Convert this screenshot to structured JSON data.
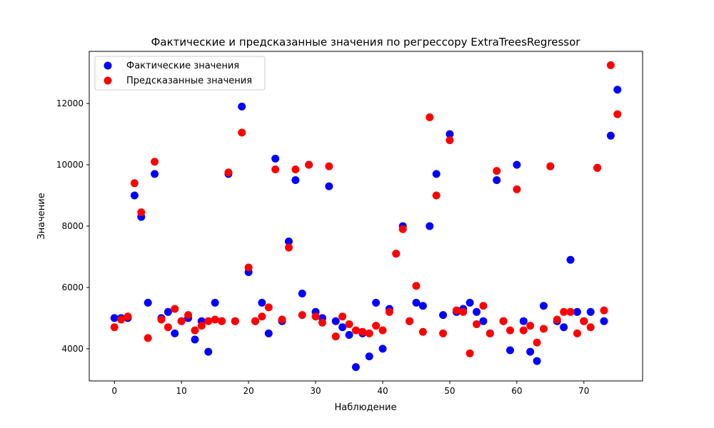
{
  "chart_data": {
    "type": "scatter",
    "title": "Фактические и предсказанные значения по регрессору ExtraTreesRegressor",
    "xlabel": "Наблюдение",
    "ylabel": "Значение",
    "xlim": [
      -3.75,
      78.75
    ],
    "ylim": [
      2950,
      13700
    ],
    "xticks": [
      0,
      10,
      20,
      30,
      40,
      50,
      60,
      70
    ],
    "yticks": [
      4000,
      6000,
      8000,
      10000,
      12000
    ],
    "grid": false,
    "legend": {
      "position": "top-left",
      "entries": [
        "Фактические значения",
        "Предсказанные значения"
      ]
    },
    "series": [
      {
        "name": "Фактические значения",
        "color": "#0000ff",
        "x": [
          0,
          1,
          2,
          3,
          4,
          5,
          6,
          7,
          8,
          9,
          10,
          11,
          12,
          13,
          14,
          15,
          16,
          17,
          18,
          19,
          20,
          21,
          22,
          23,
          24,
          25,
          26,
          27,
          28,
          29,
          30,
          31,
          32,
          33,
          34,
          35,
          36,
          37,
          38,
          39,
          40,
          41,
          42,
          43,
          44,
          45,
          46,
          47,
          48,
          49,
          50,
          51,
          52,
          53,
          54,
          55,
          56,
          57,
          58,
          59,
          60,
          61,
          62,
          63,
          64,
          65,
          66,
          67,
          68,
          69,
          70,
          71,
          72,
          73,
          74,
          75
        ],
        "y": [
          5000,
          5000,
          5000,
          9000,
          8300,
          5500,
          9700,
          5000,
          5200,
          4500,
          4900,
          5000,
          4300,
          4900,
          3900,
          5500,
          4900,
          9700,
          4900,
          11900,
          6500,
          4900,
          5500,
          4500,
          10200,
          4900,
          7500,
          9500,
          5800,
          10000,
          5200,
          5000,
          9300,
          4900,
          4700,
          4450,
          3400,
          4500,
          3750,
          5500,
          4000,
          5300,
          7100,
          8000,
          4900,
          5500,
          5400,
          8000,
          9700,
          5100,
          11000,
          5200,
          5300,
          5500,
          5200,
          4900,
          4500,
          9500,
          4900,
          3950,
          10000,
          4900,
          3900,
          3600,
          5400,
          9950,
          4900,
          4700,
          6900,
          5200,
          4900,
          5200,
          9900,
          4900,
          10950,
          12450
        ]
      },
      {
        "name": "Предсказанные значения",
        "color": "#ff0000",
        "x": [
          0,
          1,
          2,
          3,
          4,
          5,
          6,
          7,
          8,
          9,
          10,
          11,
          12,
          13,
          14,
          15,
          16,
          17,
          18,
          19,
          20,
          21,
          22,
          23,
          24,
          25,
          26,
          27,
          28,
          29,
          30,
          31,
          32,
          33,
          34,
          35,
          36,
          37,
          38,
          39,
          40,
          41,
          42,
          43,
          44,
          45,
          46,
          47,
          48,
          49,
          50,
          51,
          52,
          53,
          54,
          55,
          56,
          57,
          58,
          59,
          60,
          61,
          62,
          63,
          64,
          65,
          66,
          67,
          68,
          69,
          70,
          71,
          72,
          73,
          74,
          75
        ],
        "y": [
          4700,
          4950,
          5050,
          9400,
          8450,
          4350,
          10100,
          4950,
          4700,
          5300,
          4900,
          5100,
          4600,
          4750,
          4900,
          4950,
          4900,
          9750,
          4900,
          11050,
          6650,
          4900,
          5050,
          5350,
          9850,
          4950,
          7300,
          9850,
          5100,
          10000,
          5050,
          4850,
          9950,
          4400,
          5050,
          4800,
          4600,
          4550,
          4500,
          4750,
          4600,
          5200,
          7100,
          7900,
          4900,
          6050,
          4550,
          11550,
          9000,
          4500,
          10800,
          5250,
          5200,
          3850,
          4800,
          5400,
          4500,
          9800,
          4900,
          4600,
          9200,
          4600,
          4750,
          4200,
          4650,
          9950,
          4950,
          5200,
          5200,
          4500,
          4900,
          4700,
          9900,
          5250,
          13250,
          11650
        ]
      }
    ]
  }
}
